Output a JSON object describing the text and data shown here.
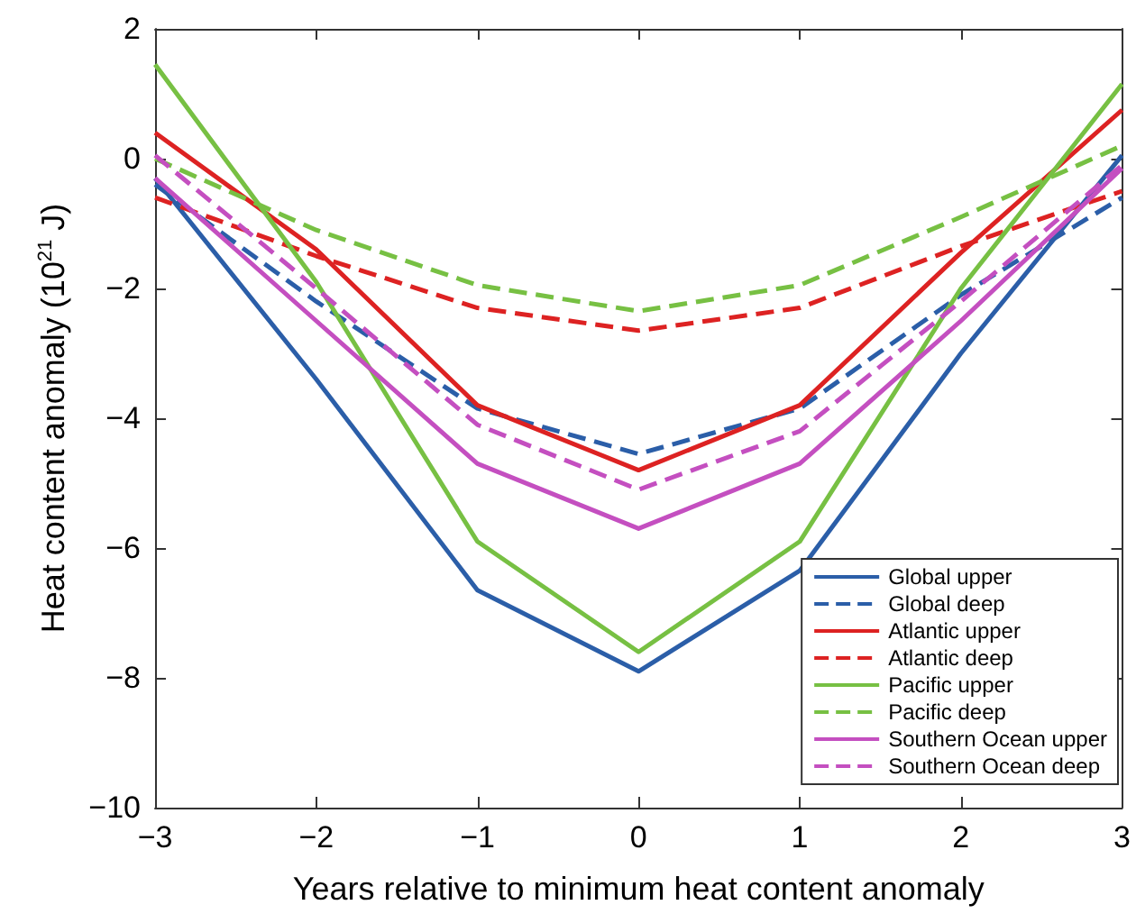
{
  "chart_data": {
    "type": "line",
    "xlabel": "Years relative to minimum heat content anomaly",
    "ylabel": "Heat content anomaly (10$^{21}$ J)",
    "x": [
      -3,
      -2,
      -1,
      0,
      1,
      2,
      3
    ],
    "series": [
      {
        "name": "Global upper",
        "color": "#2b5ea8",
        "line_style": "solid",
        "values": [
          -0.3,
          -3.4,
          -6.65,
          -7.9,
          -6.35,
          -3.0,
          0.05
        ]
      },
      {
        "name": "Global deep",
        "color": "#2b5ea8",
        "line_style": "dashed",
        "values": [
          -0.4,
          -2.2,
          -3.85,
          -4.55,
          -3.85,
          -2.1,
          -0.6
        ]
      },
      {
        "name": "Atlantic upper",
        "color": "#dd2222",
        "line_style": "solid",
        "values": [
          0.4,
          -1.4,
          -3.8,
          -4.8,
          -3.8,
          -1.45,
          0.75
        ]
      },
      {
        "name": "Atlantic deep",
        "color": "#dd2222",
        "line_style": "dashed",
        "values": [
          -0.6,
          -1.5,
          -2.3,
          -2.65,
          -2.3,
          -1.35,
          -0.5
        ]
      },
      {
        "name": "Pacific upper",
        "color": "#77c043",
        "line_style": "solid",
        "values": [
          1.45,
          -1.9,
          -5.9,
          -7.6,
          -5.9,
          -2.0,
          1.15
        ]
      },
      {
        "name": "Pacific deep",
        "color": "#77c043",
        "line_style": "dashed",
        "values": [
          0.0,
          -1.1,
          -1.95,
          -2.35,
          -1.95,
          -0.9,
          0.2
        ]
      },
      {
        "name": "Southern Ocean upper",
        "color": "#c44fc0",
        "line_style": "solid",
        "values": [
          -0.3,
          -2.5,
          -4.7,
          -5.7,
          -4.7,
          -2.5,
          -0.15
        ]
      },
      {
        "name": "Southern Ocean deep",
        "color": "#c44fc0",
        "line_style": "dashed",
        "values": [
          0.05,
          -2.0,
          -4.1,
          -5.1,
          -4.2,
          -2.2,
          -0.1
        ]
      }
    ],
    "xlim": [
      -3,
      3
    ],
    "xticks": [
      -3,
      -2,
      -1,
      0,
      1,
      2,
      3
    ],
    "ylim": [
      -10,
      2
    ],
    "yticks": [
      -10,
      -8,
      -6,
      -4,
      -2,
      0,
      2
    ],
    "grid": false,
    "legend": "bottom right",
    "marker": "none"
  }
}
